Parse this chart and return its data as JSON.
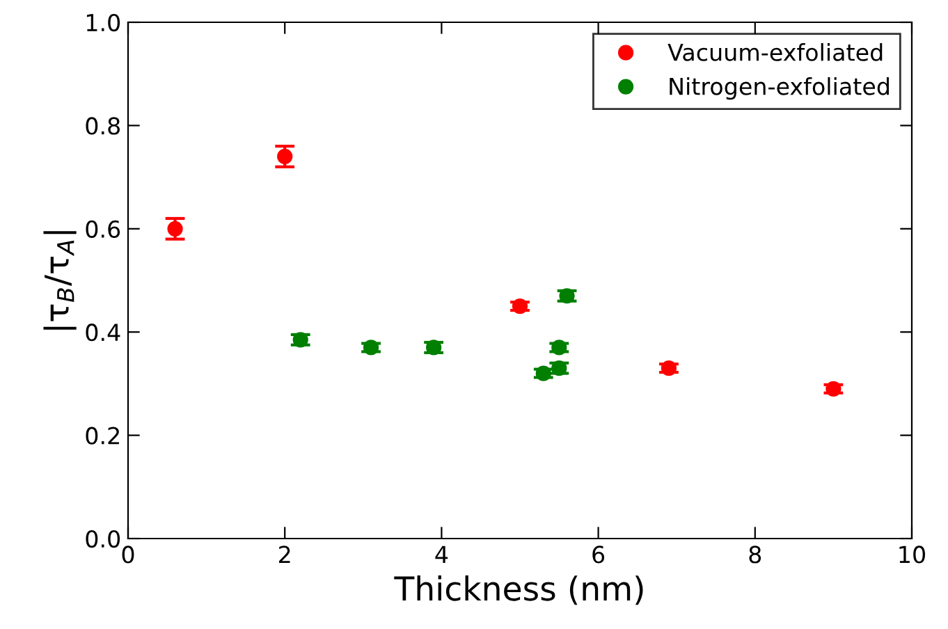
{
  "chart_data": {
    "type": "scatter",
    "xlabel": "Thickness (nm)",
    "ylabel": "|τ$_{B}$/τ$_{A}$|",
    "xlim": [
      0,
      10
    ],
    "xticks": [
      0,
      2,
      4,
      6,
      8,
      10
    ],
    "ylim": [
      0,
      1.0
    ],
    "yticks": [
      {
        "value": 0,
        "label": "0.0"
      },
      {
        "value": 0.2,
        "label": "0.2"
      },
      {
        "value": 0.4,
        "label": "0.4"
      },
      {
        "value": 0.6,
        "label": "0.6"
      },
      {
        "value": 0.8,
        "label": "0.8"
      },
      {
        "value": 1.0,
        "label": "1.0"
      }
    ],
    "grid": false,
    "legend": "top right",
    "marker": "circle",
    "series": [
      {
        "name": "Vacuum-exfoliated",
        "color": "#ff0000",
        "x": [
          0.6,
          2.0,
          5.0,
          6.9,
          9.0
        ],
        "values": [
          0.6,
          0.74,
          0.45,
          0.33,
          0.29
        ],
        "errors": [
          0.02,
          0.02,
          0.008,
          0.008,
          0.008
        ]
      },
      {
        "name": "Nitrogen-exfoliated",
        "color": "#007f00",
        "x": [
          2.2,
          3.1,
          3.9,
          5.3,
          5.5,
          5.5,
          5.6
        ],
        "values": [
          0.385,
          0.37,
          0.37,
          0.32,
          0.33,
          0.37,
          0.47
        ],
        "errors": [
          0.01,
          0.008,
          0.01,
          0.008,
          0.01,
          0.008,
          0.01
        ]
      }
    ]
  }
}
